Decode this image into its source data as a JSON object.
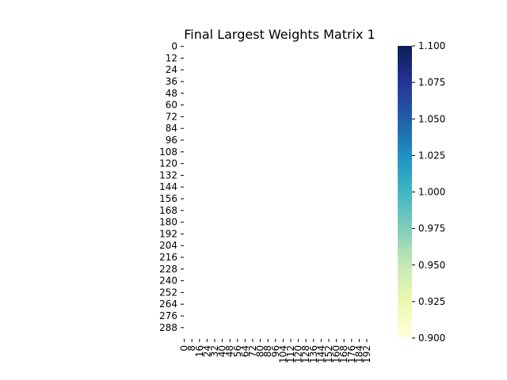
{
  "chart_data": {
    "type": "heatmap",
    "title": "Final Largest Weights Matrix 1",
    "xlabel": "",
    "ylabel": "",
    "y_ticks": [
      "0",
      "12",
      "24",
      "36",
      "48",
      "60",
      "72",
      "84",
      "96",
      "108",
      "120",
      "132",
      "144",
      "156",
      "168",
      "180",
      "192",
      "204",
      "216",
      "228",
      "240",
      "252",
      "264",
      "276",
      "288"
    ],
    "x_ticks": [
      "0",
      "8",
      "16",
      "24",
      "32",
      "40",
      "48",
      "56",
      "64",
      "72",
      "80",
      "88",
      "96",
      "104",
      "112",
      "120",
      "128",
      "136",
      "144",
      "152",
      "160",
      "168",
      "176",
      "184",
      "192"
    ],
    "rows": 300,
    "cols": 200,
    "cell_values": "all cells empty (white); no visible weights",
    "colorbar": {
      "colormap": "YlGnBu",
      "min": 0.9,
      "max": 1.1,
      "ticks": [
        "0.900",
        "0.925",
        "0.950",
        "0.975",
        "1.000",
        "1.025",
        "1.050",
        "1.075",
        "1.100"
      ],
      "colors": [
        "#ffffd9",
        "#edf8b1",
        "#c7e9b4",
        "#7fcdbb",
        "#41b6c4",
        "#1d91c0",
        "#225ea8",
        "#253494",
        "#081d58"
      ]
    },
    "grid": false
  }
}
